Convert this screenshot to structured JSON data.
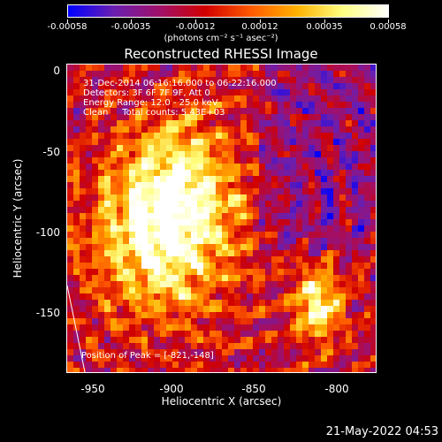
{
  "colorbar": {
    "ticks": [
      "-0.00058",
      "-0.00035",
      "-0.00012",
      "0.00012",
      "0.00035",
      "0.00058"
    ],
    "unit_label": "(photons cm⁻² s⁻¹ asec⁻²)",
    "colors": [
      "#0000ff",
      "#6a1fb0",
      "#a0106a",
      "#d00000",
      "#ff5a00",
      "#ffb000",
      "#ffff80",
      "#ffffff"
    ]
  },
  "title": "Reconstructed RHESSI Image",
  "annotation": {
    "time_range": "31-Dec-2014 06:16:16.000 to 06:22:16.000",
    "detectors": "Detectors: 3F 6F 7F 9F, Att 0",
    "energy": "Energy Range: 12.0 - 25.0 keV",
    "method": "Clean     Total counts: 5.43E+03"
  },
  "peak_label": "Position of Peak = [-821,-148]",
  "x_axis": {
    "label": "Heliocentric X (arcsec)",
    "ticks": [
      "-950",
      "-900",
      "-850",
      "-800"
    ]
  },
  "y_axis": {
    "label": "Heliocentric Y (arcsec)",
    "ticks": [
      "0",
      "-50",
      "-100",
      "-150"
    ]
  },
  "timestamp": "21-May-2022 04:53"
}
